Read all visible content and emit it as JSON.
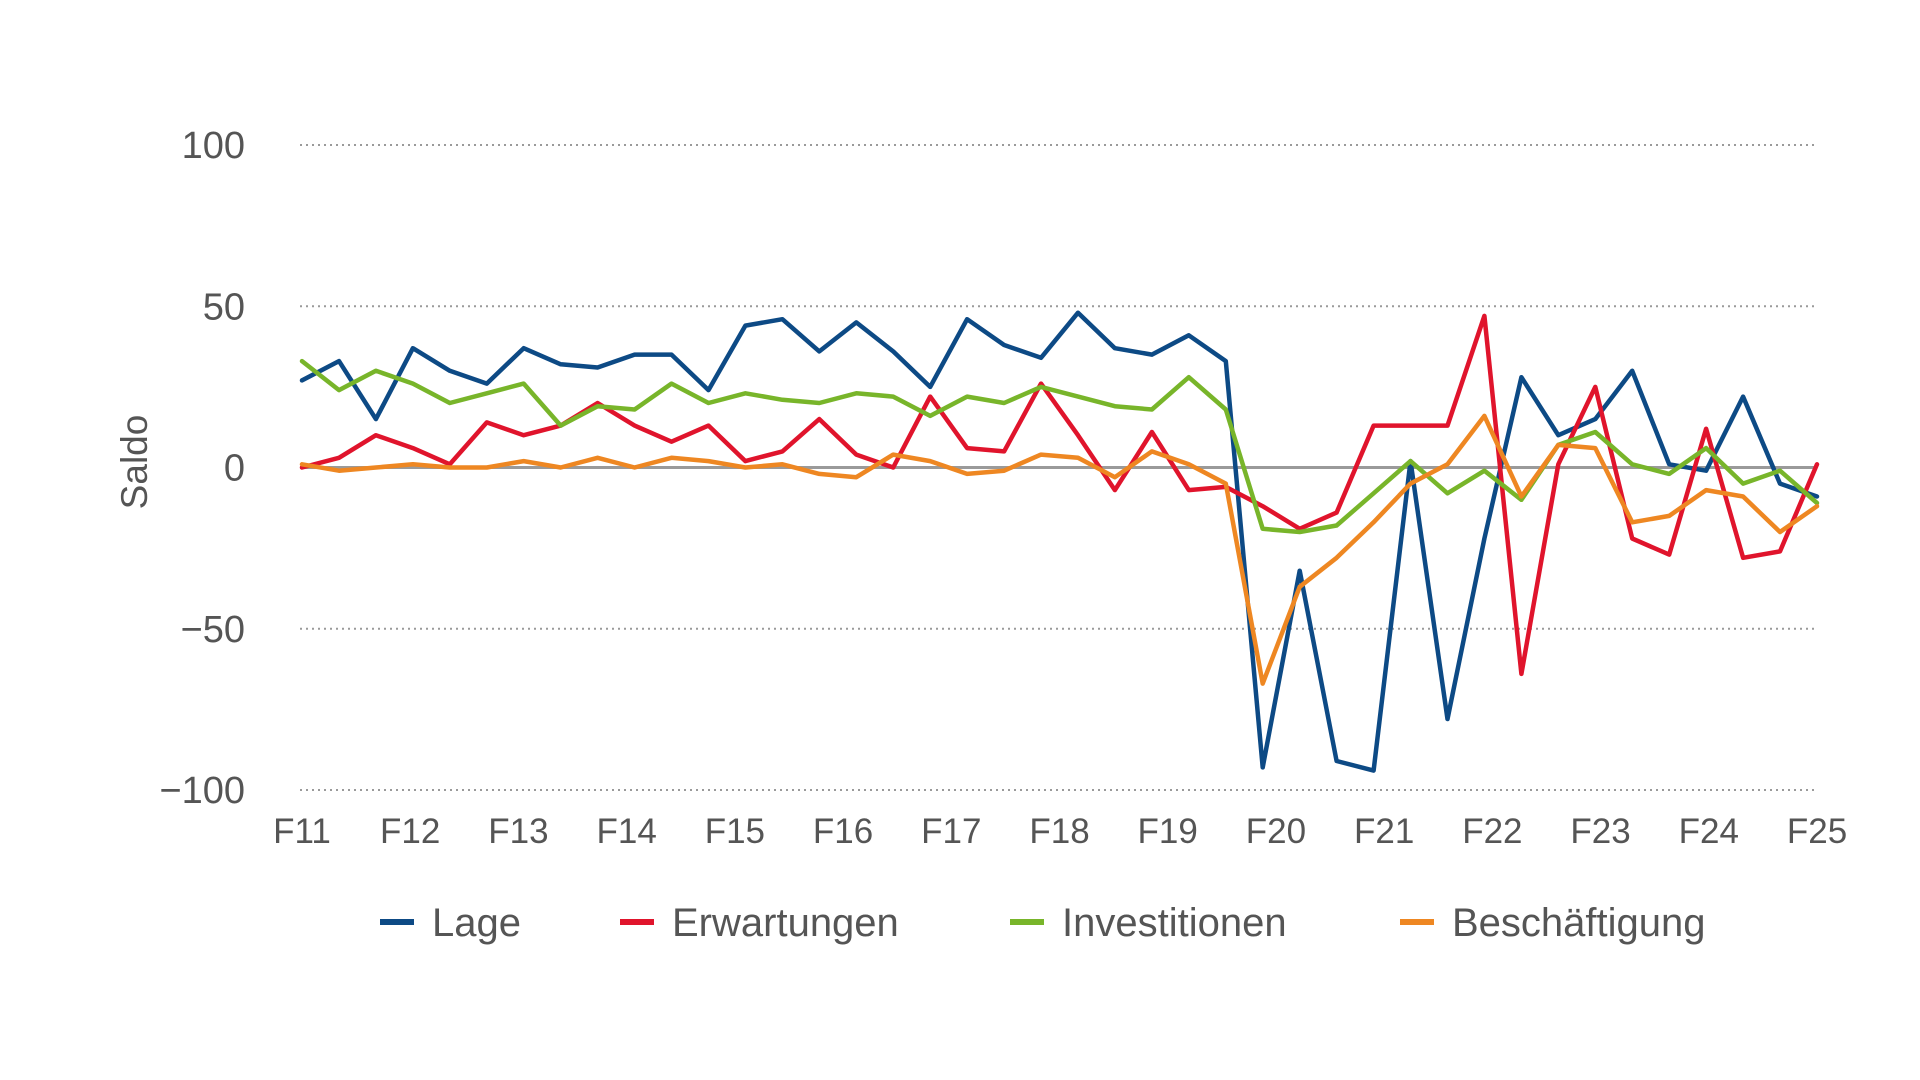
{
  "chart_data": {
    "type": "line",
    "ylabel": "Saldo",
    "xlabel": "",
    "ylim": [
      -100,
      100
    ],
    "yticks": [
      100,
      50,
      0,
      -50,
      -100
    ],
    "grid": "horizontal dotted",
    "legend_position": "bottom",
    "x_tick_labels": [
      "F11",
      "F12",
      "F13",
      "F14",
      "F15",
      "F16",
      "F17",
      "F18",
      "F19",
      "F20",
      "F21",
      "F22",
      "F23",
      "F24",
      "F25"
    ],
    "series": [
      {
        "name": "Lage",
        "color": "#0d4a85",
        "values": [
          27,
          33,
          15,
          37,
          30,
          26,
          37,
          32,
          31,
          35,
          35,
          24,
          44,
          46,
          36,
          45,
          36,
          25,
          46,
          38,
          34,
          48,
          37,
          35,
          41,
          33,
          -93,
          -32,
          -91,
          -94,
          2,
          -78,
          -22,
          28,
          10,
          15,
          30,
          1,
          -1,
          22,
          -5,
          -9
        ]
      },
      {
        "name": "Erwartungen",
        "color": "#e0142c",
        "values": [
          0,
          3,
          10,
          6,
          1,
          14,
          10,
          13,
          20,
          13,
          8,
          13,
          2,
          5,
          15,
          4,
          0,
          22,
          6,
          5,
          26,
          10,
          -7,
          11,
          -7,
          -6,
          -12,
          -19,
          -14,
          13,
          13,
          13,
          47,
          -64,
          1,
          25,
          -22,
          -27,
          12,
          -28,
          -26,
          1
        ]
      },
      {
        "name": "Investitionen",
        "color": "#78b52a",
        "values": [
          33,
          24,
          30,
          26,
          20,
          23,
          26,
          13,
          19,
          18,
          26,
          20,
          23,
          21,
          20,
          23,
          22,
          16,
          22,
          20,
          25,
          22,
          19,
          18,
          28,
          18,
          -19,
          -20,
          -18,
          -8,
          2,
          -8,
          -1,
          -10,
          7,
          11,
          1,
          -2,
          6,
          -5,
          -1,
          -11
        ]
      },
      {
        "name": "Beschäftigung",
        "color": "#ee8722",
        "values": [
          1,
          -1,
          0,
          1,
          0,
          0,
          2,
          0,
          3,
          0,
          3,
          2,
          0,
          1,
          -2,
          -3,
          4,
          2,
          -2,
          -1,
          4,
          3,
          -3,
          5,
          1,
          -5,
          -67,
          -37,
          -28,
          -17,
          -5,
          1,
          16,
          -9,
          7,
          6,
          -17,
          -15,
          -7,
          -9,
          -20,
          -12
        ]
      }
    ]
  }
}
